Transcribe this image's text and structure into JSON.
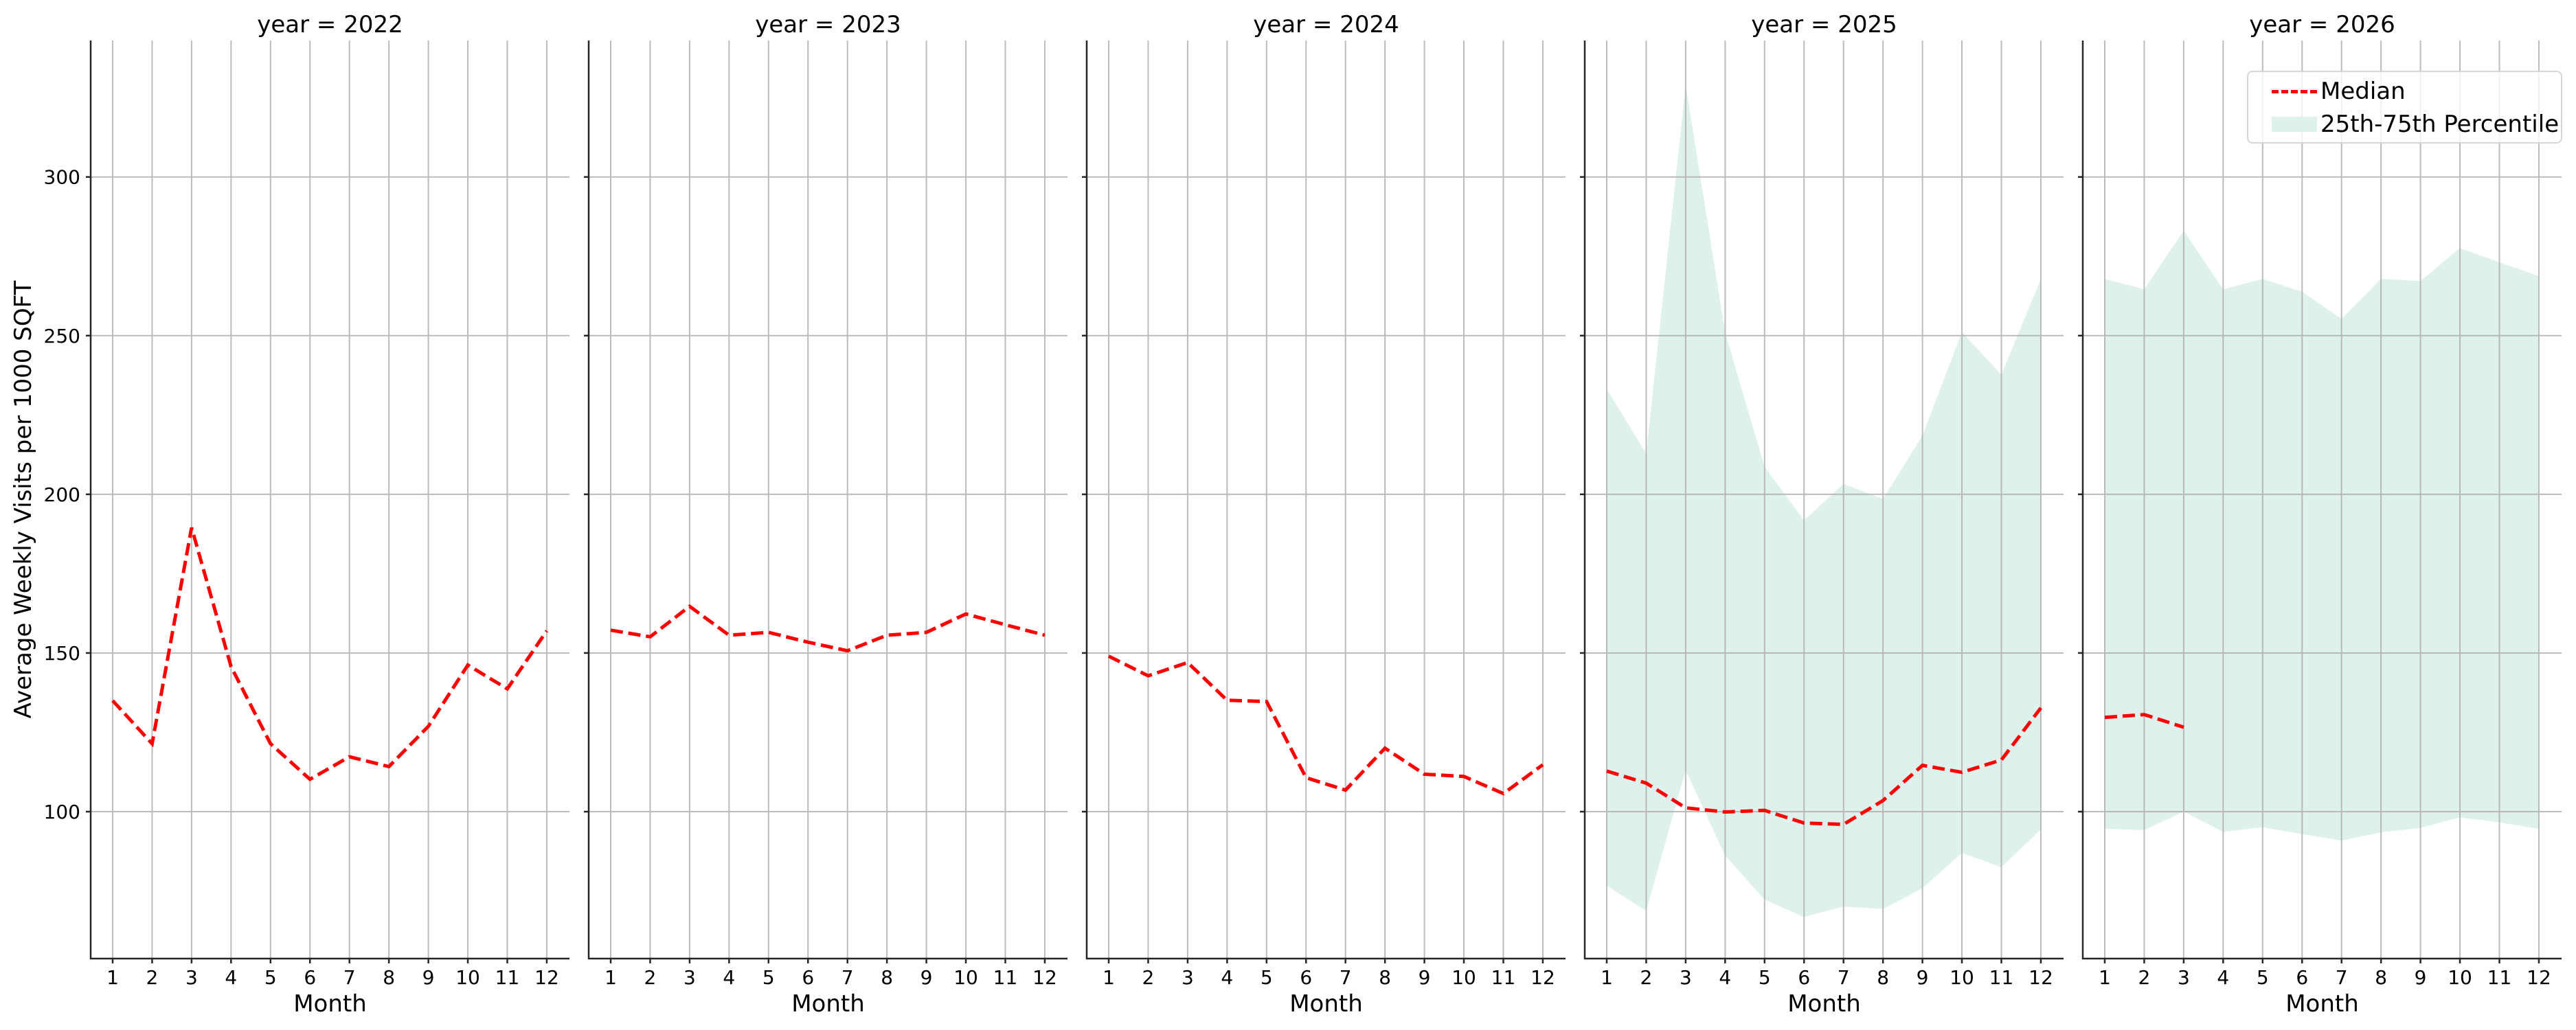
{
  "figure": {
    "ylabel": "Average Weekly Visits per 1000 SQFT",
    "xlabel": "Month",
    "legend": {
      "median_label": "Median",
      "band_label": "25th-75th Percentile"
    },
    "colors": {
      "median": "#ff0000",
      "band": "#dff1ec",
      "grid": "#b0b0b0",
      "axis": "#262626"
    }
  },
  "chart_data": {
    "type": "line",
    "layout": "facet-columns",
    "facet_var": "year",
    "title_template": "year = {value}",
    "xlabel": "Month",
    "ylabel": "Average Weekly Visits per 1000 SQFT",
    "x": [
      1,
      2,
      3,
      4,
      5,
      6,
      7,
      8,
      9,
      10,
      11,
      12
    ],
    "xticks": [
      "1",
      "2",
      "3",
      "4",
      "5",
      "6",
      "7",
      "8",
      "9",
      "10",
      "11",
      "12"
    ],
    "ylim": [
      53.7,
      343
    ],
    "yticks": [
      100,
      150,
      200,
      250,
      300
    ],
    "grid": true,
    "sharey": true,
    "legend_position": "upper right (last panel)",
    "legend": [
      "Median",
      "25th-75th Percentile"
    ],
    "panels": [
      {
        "title": "year = 2022",
        "median": [
          135.0,
          121.4,
          189.5,
          145.7,
          121.4,
          110.2,
          117.3,
          114.2,
          126.9,
          146.2,
          138.7,
          157.0
        ],
        "p25": null,
        "p75": null
      },
      {
        "title": "year = 2023",
        "median": [
          157.2,
          155.1,
          164.7,
          155.6,
          156.5,
          153.4,
          150.7,
          155.6,
          156.5,
          162.3,
          158.9,
          155.6
        ],
        "p25": null,
        "p75": null
      },
      {
        "title": "year = 2024",
        "median": [
          149.0,
          142.8,
          147.0,
          135.1,
          134.7,
          110.7,
          106.8,
          120.0,
          111.8,
          111.1,
          105.7,
          114.8
        ],
        "p25": null,
        "p75": null
      },
      {
        "title": "year = 2025",
        "median": [
          112.8,
          109.0,
          101.2,
          99.9,
          100.4,
          96.4,
          96.0,
          103.5,
          114.6,
          112.4,
          116.3,
          132.7
        ],
        "p25": [
          76.7,
          68.7,
          113.1,
          86.1,
          72.3,
          66.8,
          70.1,
          69.3,
          75.9,
          87.0,
          82.5,
          94.4
        ],
        "p75": [
          233.2,
          212.8,
          329.0,
          251.0,
          208.6,
          191.8,
          203.3,
          198.5,
          218.5,
          251.1,
          237.7,
          267.9
        ]
      },
      {
        "title": "year = 2026",
        "median": [
          129.7,
          130.6,
          126.6,
          null,
          null,
          null,
          null,
          null,
          null,
          null,
          null,
          null
        ],
        "p25": [
          94.6,
          94.2,
          100.0,
          93.6,
          95.1,
          92.9,
          90.9,
          93.5,
          94.9,
          98.2,
          96.6,
          94.6
        ],
        "p75": [
          267.9,
          264.6,
          283.1,
          264.6,
          267.9,
          263.8,
          255.3,
          267.9,
          267.2,
          277.6,
          273.1,
          268.8
        ]
      }
    ]
  }
}
